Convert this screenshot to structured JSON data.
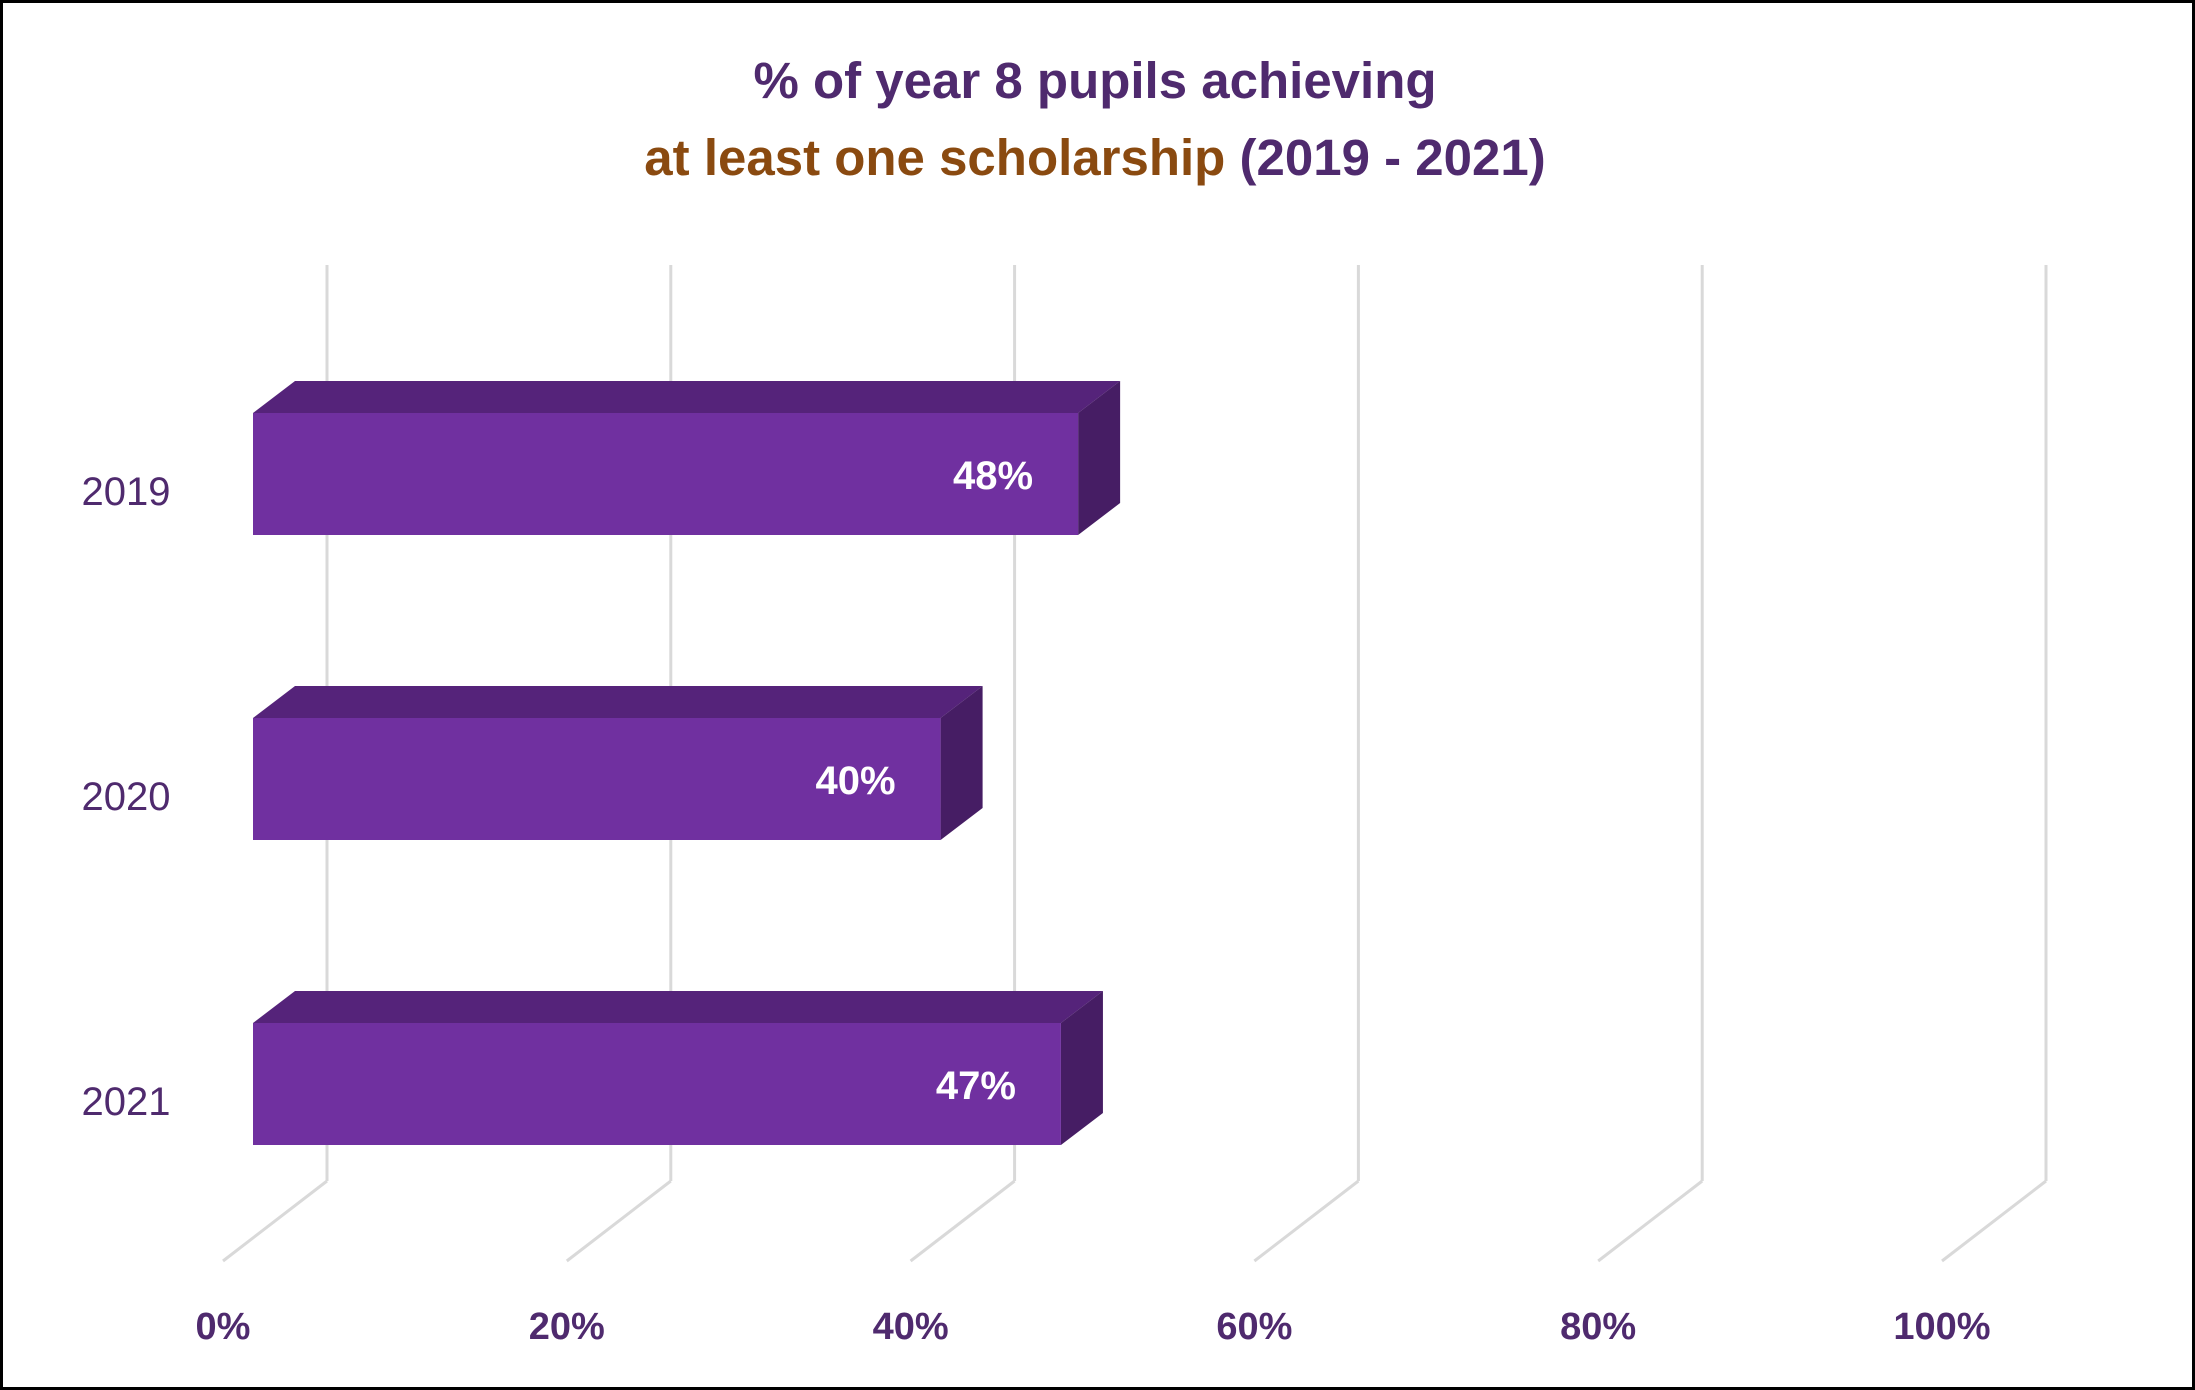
{
  "chart_data": {
    "type": "bar",
    "orientation": "horizontal",
    "style": "3d",
    "title": {
      "line1": "% of year 8 pupils achieving",
      "line2_part1": "at least one scholarship",
      "line2_part2": " (2019 - 2021)"
    },
    "categories": [
      "2019",
      "2020",
      "2021"
    ],
    "values": [
      48,
      40,
      47
    ],
    "data_labels": [
      "48%",
      "40%",
      "47%"
    ],
    "xticks": [
      "0%",
      "20%",
      "40%",
      "60%",
      "80%",
      "100%"
    ],
    "xlim": [
      0,
      100
    ],
    "xlabel": "",
    "ylabel": "",
    "grid": true,
    "legend": "none"
  },
  "colors": {
    "title_purple": "#4f2a6e",
    "title_brown": "#8a4a10",
    "bar_front": "#7030a0",
    "bar_top": "#55237a",
    "bar_side": "#461d64",
    "tick_text": "#4f2a6e",
    "grid": "#d9d9d9"
  }
}
